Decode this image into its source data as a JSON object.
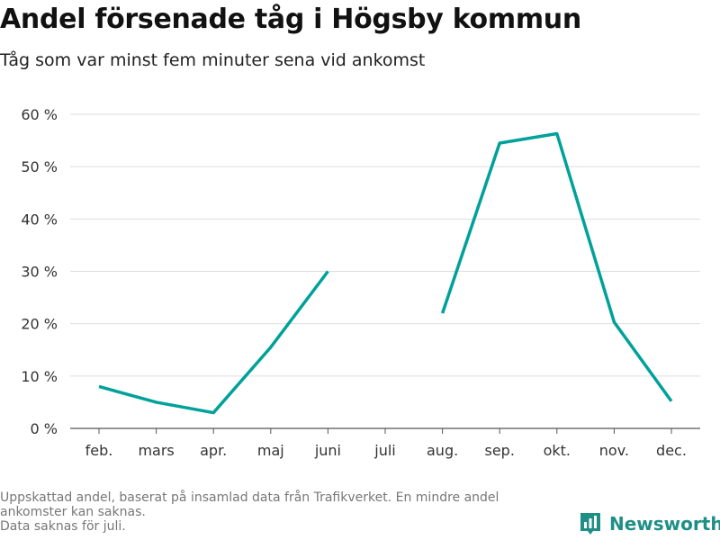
{
  "title": "Andel försenade tåg i Högsby kommun",
  "subtitle": "Tåg som var minst fem minuter sena vid ankomst",
  "footnote": {
    "line1": "Uppskattad andel, baserat på insamlad data från Trafikverket. En mindre andel",
    "line2": "ankomster kan saknas.",
    "line3": "Data saknas för juli."
  },
  "brand": {
    "name": "Newsworthy",
    "color": "#1f8f86",
    "icon": "bar-chart-logo-icon"
  },
  "chart_data": {
    "type": "line",
    "categories": [
      "feb.",
      "mars",
      "apr.",
      "maj",
      "juni",
      "juli",
      "aug.",
      "sep.",
      "okt.",
      "nov.",
      "dec."
    ],
    "series": [
      {
        "values": [
          8,
          5,
          3,
          15.5,
          30,
          null,
          22,
          54.5,
          56.3,
          20.3,
          5.2
        ]
      }
    ],
    "ylim": [
      0,
      60
    ],
    "yticks": [
      0,
      10,
      20,
      30,
      40,
      50,
      60
    ],
    "ytick_labels": [
      "0 %",
      "10 %",
      "20 %",
      "30 %",
      "40 %",
      "50 %",
      "60 %"
    ],
    "grid": true,
    "line_color": "#00a19a"
  }
}
